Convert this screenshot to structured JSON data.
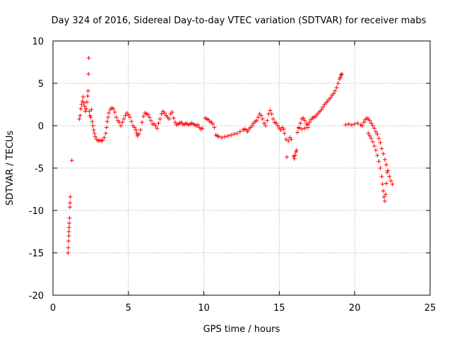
{
  "chart_data": {
    "type": "scatter",
    "title": "Day 324 of 2016, Sidereal Day-to-day VTEC variation (SDTVAR) for receiver mabs",
    "xlabel": "GPS time / hours",
    "ylabel": "SDTVAR / TECUs",
    "xlim": [
      0,
      25
    ],
    "ylim": [
      -20,
      10
    ],
    "xticks": [
      0,
      5,
      10,
      15,
      20,
      25
    ],
    "yticks": [
      -20,
      -15,
      -10,
      -5,
      0,
      5,
      10
    ],
    "grid": true,
    "marker": "+",
    "color": "#ff0000",
    "series": [
      {
        "name": "SDTVAR",
        "points": [
          [
            1.0,
            -15.0
          ],
          [
            1.02,
            -14.4
          ],
          [
            1.03,
            -13.6
          ],
          [
            1.05,
            -13.0
          ],
          [
            1.06,
            -12.5
          ],
          [
            1.07,
            -12.0
          ],
          [
            1.08,
            -11.5
          ],
          [
            1.1,
            -10.9
          ],
          [
            1.12,
            -9.6
          ],
          [
            1.13,
            -9.1
          ],
          [
            1.15,
            -8.4
          ],
          [
            1.25,
            -4.1
          ],
          [
            1.75,
            0.8
          ],
          [
            1.8,
            1.2
          ],
          [
            1.85,
            2.0
          ],
          [
            1.9,
            2.5
          ],
          [
            1.95,
            2.9
          ],
          [
            2.0,
            3.4
          ],
          [
            2.05,
            2.7
          ],
          [
            2.1,
            2.3
          ],
          [
            2.15,
            1.7
          ],
          [
            2.2,
            2.0
          ],
          [
            2.25,
            2.8
          ],
          [
            2.3,
            3.5
          ],
          [
            2.33,
            4.1
          ],
          [
            2.35,
            6.1
          ],
          [
            2.37,
            8.0
          ],
          [
            2.4,
            1.7
          ],
          [
            2.45,
            1.2
          ],
          [
            2.5,
            1.0
          ],
          [
            2.55,
            1.9
          ],
          [
            2.6,
            0.5
          ],
          [
            2.65,
            0.0
          ],
          [
            2.7,
            -0.5
          ],
          [
            2.75,
            -0.9
          ],
          [
            2.8,
            -1.3
          ],
          [
            2.9,
            -1.6
          ],
          [
            3.0,
            -1.8
          ],
          [
            3.1,
            -1.7
          ],
          [
            3.2,
            -1.8
          ],
          [
            3.3,
            -1.7
          ],
          [
            3.4,
            -1.4
          ],
          [
            3.5,
            -0.9
          ],
          [
            3.55,
            -0.2
          ],
          [
            3.6,
            0.5
          ],
          [
            3.65,
            1.0
          ],
          [
            3.7,
            1.5
          ],
          [
            3.8,
            1.9
          ],
          [
            3.9,
            2.1
          ],
          [
            4.0,
            2.0
          ],
          [
            4.1,
            1.6
          ],
          [
            4.2,
            1.0
          ],
          [
            4.3,
            0.6
          ],
          [
            4.4,
            0.4
          ],
          [
            4.5,
            0.0
          ],
          [
            4.6,
            0.4
          ],
          [
            4.7,
            0.8
          ],
          [
            4.8,
            1.2
          ],
          [
            4.9,
            1.5
          ],
          [
            5.0,
            1.3
          ],
          [
            5.1,
            1.0
          ],
          [
            5.2,
            0.5
          ],
          [
            5.3,
            0.0
          ],
          [
            5.4,
            -0.2
          ],
          [
            5.5,
            -0.5
          ],
          [
            5.55,
            -0.9
          ],
          [
            5.6,
            -1.2
          ],
          [
            5.7,
            -1.0
          ],
          [
            5.8,
            -0.5
          ],
          [
            5.9,
            0.4
          ],
          [
            6.0,
            1.1
          ],
          [
            6.1,
            1.5
          ],
          [
            6.2,
            1.4
          ],
          [
            6.3,
            1.3
          ],
          [
            6.4,
            1.0
          ],
          [
            6.5,
            0.6
          ],
          [
            6.6,
            0.2
          ],
          [
            6.7,
            0.2
          ],
          [
            6.8,
            0.0
          ],
          [
            6.9,
            -0.3
          ],
          [
            7.0,
            0.3
          ],
          [
            7.1,
            0.8
          ],
          [
            7.2,
            1.4
          ],
          [
            7.3,
            1.7
          ],
          [
            7.4,
            1.5
          ],
          [
            7.5,
            1.2
          ],
          [
            7.6,
            1.0
          ],
          [
            7.7,
            0.8
          ],
          [
            7.8,
            1.4
          ],
          [
            7.9,
            1.6
          ],
          [
            8.0,
            0.9
          ],
          [
            8.1,
            0.4
          ],
          [
            8.2,
            0.1
          ],
          [
            8.3,
            0.2
          ],
          [
            8.4,
            0.3
          ],
          [
            8.5,
            0.4
          ],
          [
            8.6,
            0.2
          ],
          [
            8.7,
            0.1
          ],
          [
            8.8,
            0.3
          ],
          [
            8.9,
            0.2
          ],
          [
            9.0,
            0.1
          ],
          [
            9.1,
            0.2
          ],
          [
            9.2,
            0.3
          ],
          [
            9.3,
            0.2
          ],
          [
            9.4,
            0.1
          ],
          [
            9.5,
            0.0
          ],
          [
            9.6,
            0.1
          ],
          [
            9.7,
            -0.2
          ],
          [
            9.8,
            -0.4
          ],
          [
            9.9,
            -0.3
          ],
          [
            10.1,
            0.9
          ],
          [
            10.2,
            0.8
          ],
          [
            10.3,
            0.7
          ],
          [
            10.4,
            0.5
          ],
          [
            10.5,
            0.4
          ],
          [
            10.6,
            0.2
          ],
          [
            10.7,
            -0.2
          ],
          [
            10.8,
            -1.1
          ],
          [
            10.9,
            -1.2
          ],
          [
            11.0,
            -1.3
          ],
          [
            11.2,
            -1.4
          ],
          [
            11.4,
            -1.3
          ],
          [
            11.6,
            -1.2
          ],
          [
            11.8,
            -1.1
          ],
          [
            12.0,
            -1.0
          ],
          [
            12.2,
            -0.9
          ],
          [
            12.4,
            -0.7
          ],
          [
            12.6,
            -0.5
          ],
          [
            12.7,
            -0.4
          ],
          [
            12.8,
            -0.5
          ],
          [
            12.9,
            -0.7
          ],
          [
            13.0,
            -0.4
          ],
          [
            13.1,
            -0.2
          ],
          [
            13.2,
            0.0
          ],
          [
            13.3,
            0.3
          ],
          [
            13.4,
            0.5
          ],
          [
            13.5,
            0.6
          ],
          [
            13.6,
            1.0
          ],
          [
            13.7,
            1.4
          ],
          [
            13.8,
            1.2
          ],
          [
            13.9,
            0.8
          ],
          [
            14.0,
            0.3
          ],
          [
            14.1,
            0.0
          ],
          [
            14.2,
            0.6
          ],
          [
            14.3,
            1.4
          ],
          [
            14.4,
            1.8
          ],
          [
            14.5,
            1.4
          ],
          [
            14.6,
            0.8
          ],
          [
            14.7,
            0.4
          ],
          [
            14.8,
            0.3
          ],
          [
            14.9,
            0.0
          ],
          [
            15.0,
            -0.3
          ],
          [
            15.1,
            -0.5
          ],
          [
            15.2,
            -0.2
          ],
          [
            15.3,
            -0.4
          ],
          [
            15.35,
            -0.9
          ],
          [
            15.45,
            -1.6
          ],
          [
            15.6,
            -1.8
          ],
          [
            15.7,
            -1.4
          ],
          [
            15.8,
            -1.6
          ],
          [
            15.5,
            -3.7
          ],
          [
            15.95,
            -3.6
          ],
          [
            16.0,
            -3.9
          ],
          [
            16.05,
            -3.5
          ],
          [
            16.1,
            -3.1
          ],
          [
            16.15,
            -2.9
          ],
          [
            16.2,
            -0.8
          ],
          [
            16.3,
            -0.3
          ],
          [
            16.4,
            0.3
          ],
          [
            16.5,
            0.8
          ],
          [
            16.6,
            0.9
          ],
          [
            16.7,
            0.6
          ],
          [
            16.8,
            0.2
          ],
          [
            16.9,
            0.1
          ],
          [
            17.0,
            0.4
          ],
          [
            17.1,
            0.7
          ],
          [
            17.2,
            0.9
          ],
          [
            17.3,
            1.0
          ],
          [
            17.4,
            1.1
          ],
          [
            17.5,
            1.3
          ],
          [
            17.6,
            1.5
          ],
          [
            17.7,
            1.7
          ],
          [
            17.8,
            1.9
          ],
          [
            17.9,
            2.2
          ],
          [
            18.0,
            2.5
          ],
          [
            18.1,
            2.7
          ],
          [
            18.2,
            2.9
          ],
          [
            18.3,
            3.1
          ],
          [
            18.4,
            3.3
          ],
          [
            18.5,
            3.6
          ],
          [
            18.6,
            3.8
          ],
          [
            18.7,
            4.1
          ],
          [
            18.8,
            4.5
          ],
          [
            18.9,
            5.0
          ],
          [
            19.0,
            5.5
          ],
          [
            19.05,
            5.7
          ],
          [
            19.1,
            6.0
          ],
          [
            19.15,
            6.1
          ],
          [
            16.3,
            -0.2
          ],
          [
            16.5,
            -0.4
          ],
          [
            16.7,
            -0.3
          ],
          [
            16.9,
            -0.2
          ],
          [
            19.4,
            0.1
          ],
          [
            19.6,
            0.2
          ],
          [
            19.8,
            0.1
          ],
          [
            20.0,
            0.2
          ],
          [
            20.2,
            0.3
          ],
          [
            20.4,
            0.1
          ],
          [
            20.5,
            0.0
          ],
          [
            20.6,
            0.4
          ],
          [
            20.7,
            0.7
          ],
          [
            20.8,
            0.9
          ],
          [
            20.9,
            0.8
          ],
          [
            21.0,
            0.6
          ],
          [
            21.1,
            0.3
          ],
          [
            21.2,
            0.0
          ],
          [
            21.3,
            -0.3
          ],
          [
            21.4,
            -0.7
          ],
          [
            21.5,
            -1.0
          ],
          [
            21.6,
            -1.5
          ],
          [
            21.7,
            -2.0
          ],
          [
            21.8,
            -2.7
          ],
          [
            21.9,
            -3.3
          ],
          [
            22.0,
            -4.0
          ],
          [
            22.1,
            -4.6
          ],
          [
            22.2,
            -5.3
          ],
          [
            22.3,
            -6.0
          ],
          [
            22.4,
            -6.5
          ],
          [
            22.5,
            -6.9
          ],
          [
            20.9,
            -0.9
          ],
          [
            21.0,
            -1.2
          ],
          [
            21.1,
            -1.5
          ],
          [
            21.2,
            -1.9
          ],
          [
            21.3,
            -2.4
          ],
          [
            21.4,
            -2.9
          ],
          [
            21.5,
            -3.5
          ],
          [
            21.6,
            -4.2
          ],
          [
            21.7,
            -5.0
          ],
          [
            21.8,
            -6.0
          ],
          [
            21.85,
            -6.9
          ],
          [
            21.9,
            -7.7
          ],
          [
            21.95,
            -8.4
          ],
          [
            22.0,
            -8.9
          ],
          [
            22.05,
            -8.1
          ],
          [
            22.1,
            -6.8
          ],
          [
            22.15,
            -5.5
          ]
        ]
      }
    ]
  }
}
